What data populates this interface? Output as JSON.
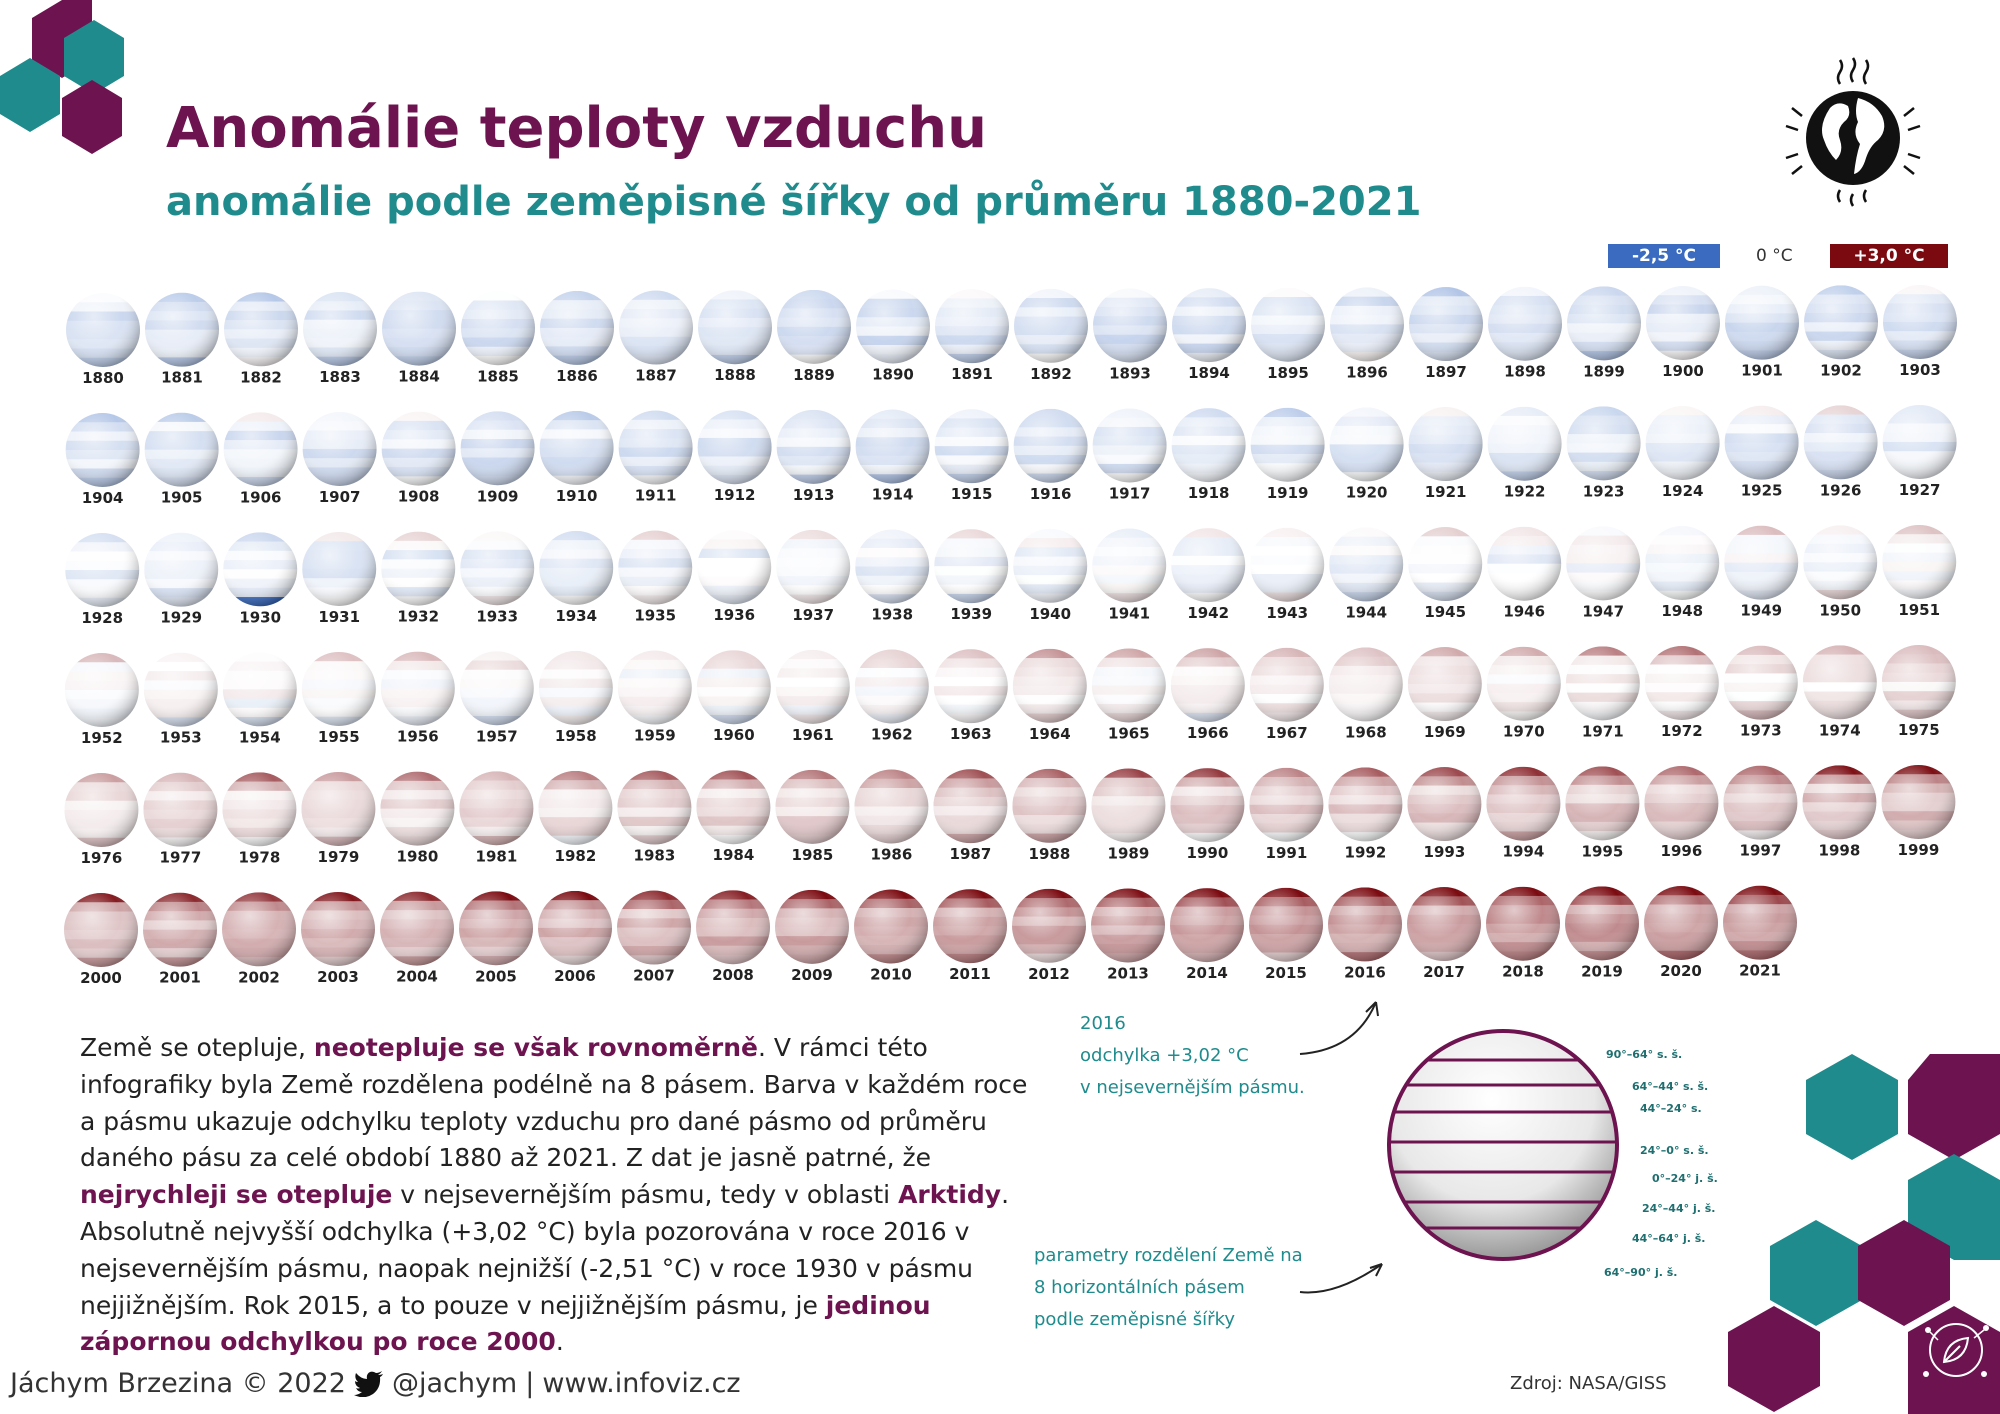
{
  "header": {
    "title": "Anomálie teploty vzduchu",
    "subtitle": "anomálie podle zeměpisné šířky od průměru 1880-2021"
  },
  "legend": {
    "min_label": "-2,5 °C",
    "mid_label": "0 °C",
    "max_label": "+3,0 °C",
    "min_color": "#3a6bc0",
    "max_color": "#7a0a10"
  },
  "chart_data": {
    "type": "heatmap",
    "title": "Anomálie teploty vzduchu",
    "subtitle": "anomálie podle zeměpisné šířky od průměru 1880-2021",
    "years": [
      1880,
      1881,
      1882,
      1883,
      1884,
      1885,
      1886,
      1887,
      1888,
      1889,
      1890,
      1891,
      1892,
      1893,
      1894,
      1895,
      1896,
      1897,
      1898,
      1899,
      1900,
      1901,
      1902,
      1903,
      1904,
      1905,
      1906,
      1907,
      1908,
      1909,
      1910,
      1911,
      1912,
      1913,
      1914,
      1915,
      1916,
      1917,
      1918,
      1919,
      1920,
      1921,
      1922,
      1923,
      1924,
      1925,
      1926,
      1927,
      1928,
      1929,
      1930,
      1931,
      1932,
      1933,
      1934,
      1935,
      1936,
      1937,
      1938,
      1939,
      1940,
      1941,
      1942,
      1943,
      1944,
      1945,
      1946,
      1947,
      1948,
      1949,
      1950,
      1951,
      1952,
      1953,
      1954,
      1955,
      1956,
      1957,
      1958,
      1959,
      1960,
      1961,
      1962,
      1963,
      1964,
      1965,
      1966,
      1967,
      1968,
      1969,
      1970,
      1971,
      1972,
      1973,
      1974,
      1975,
      1976,
      1977,
      1978,
      1979,
      1980,
      1981,
      1982,
      1983,
      1984,
      1985,
      1986,
      1987,
      1988,
      1989,
      1990,
      1991,
      1992,
      1993,
      1994,
      1995,
      1996,
      1997,
      1998,
      1999,
      2000,
      2001,
      2002,
      2003,
      2004,
      2005,
      2006,
      2007,
      2008,
      2009,
      2010,
      2011,
      2012,
      2013,
      2014,
      2015,
      2016,
      2017,
      2018,
      2019,
      2020,
      2021
    ],
    "zones": [
      "90°–64° s. š.",
      "64°–44° s. š.",
      "44°–24° s.",
      "24°–0° s. š.",
      "0°–24° j. š.",
      "24°–44° j. š.",
      "44°–64° j. š.",
      "64°–90° j. š."
    ],
    "color_scale": {
      "min": -2.5,
      "mid": 0,
      "max": 3.0,
      "min_color": "#3a6bc0",
      "mid_color": "#ffffff",
      "max_color": "#7a0a10"
    },
    "highlights": [
      {
        "year": 2016,
        "zone": "90°–64° s. š.",
        "value": 3.02
      },
      {
        "year": 1930,
        "zone": "64°–90° j. š.",
        "value": -2.51
      }
    ]
  },
  "annotations": {
    "year2016": [
      "2016",
      "odchylka +3,02 °C",
      "v nejsevernějším pásmu."
    ],
    "bands": [
      "parametry rozdělení Země na",
      "8 horizontálních pásem",
      "podle zeměpisné šířky"
    ]
  },
  "body": {
    "p1": "Země se otepluje, ",
    "h1": "neotepluje se však rovnoměrně",
    "p2": ". V rámci této infografiky byla Země rozdělena podélně na 8 pásem. Barva v každém roce a pásmu ukazuje odchylku teploty vzduchu pro dané pásmo od průměru daného pásu za celé období 1880 až 2021. Z dat je jasně patrné, že ",
    "h2": "nejrychleji se otepluje",
    "p3": " v nejsevernějším pásmu, tedy v oblasti ",
    "h3": "Arktidy",
    "p4": ". Absolutně nejvyšší odchylka (+3,02 °C) byla pozorována v roce 2016 v nejsevernějším pásmu, naopak nejnižší (-2,51 °C) v roce 1930 v pásmu nejjižnějším. Rok 2015, a to pouze v nejjižnějším pásmu, je ",
    "h4": "jedinou zápornou odchylkou po roce 2000",
    "p5": "."
  },
  "footer": {
    "author": "Jáchym Brzezina © 2022",
    "handle": "@jachym",
    "separator": "|",
    "site": "www.infoviz.cz",
    "source": "Zdroj: NASA/GISS"
  },
  "icons": [
    "twitter-bird-icon",
    "globe-warming-icon",
    "hexagon-decoration",
    "leaf-network-icon"
  ],
  "colors": {
    "primary": "#6d1450",
    "accent": "#1f8b8c",
    "hex_purple": "#6d1450",
    "hex_teal": "#1f8b8c"
  }
}
